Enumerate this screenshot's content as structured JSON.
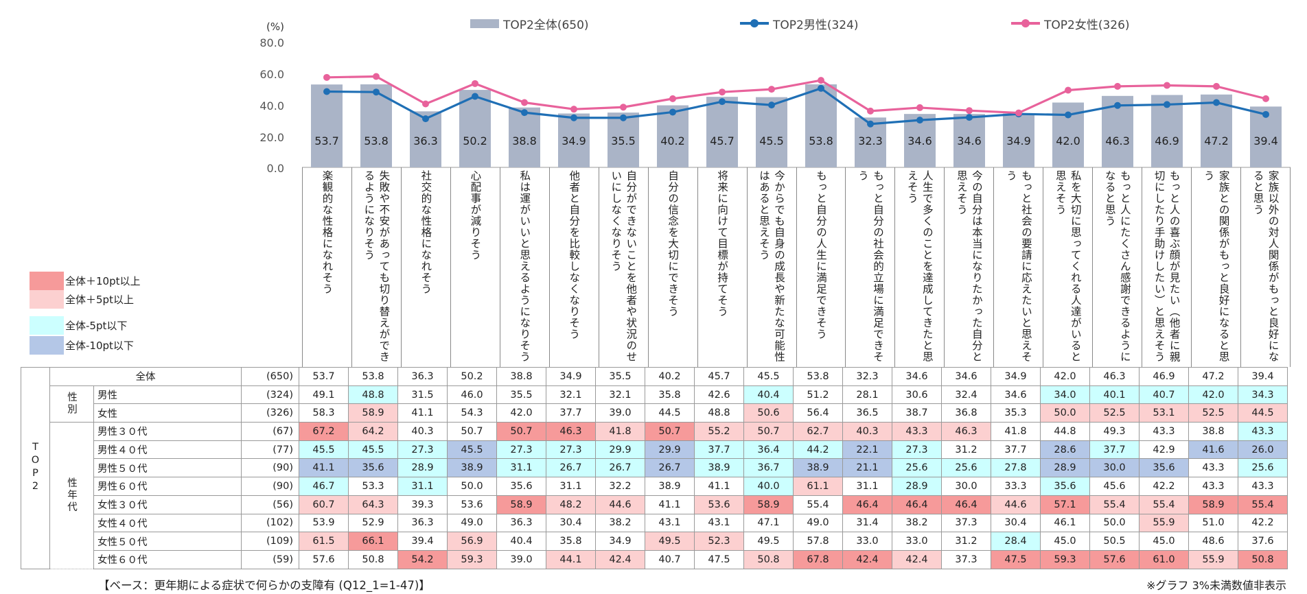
{
  "chart_data": {
    "type": "bar",
    "unit_label": "(%)",
    "ylim": [
      0,
      80
    ],
    "yticks": [
      "80.0",
      "60.0",
      "40.0",
      "20.0",
      "0.0"
    ],
    "legend_position": "top",
    "colors": {
      "bar": "#aab4c7",
      "male": "#1f6fb5",
      "female": "#e8629b"
    },
    "series": [
      {
        "name": "TOP2全体(650)",
        "kind": "bar",
        "values": [
          53.7,
          53.8,
          36.3,
          50.2,
          38.8,
          34.9,
          35.5,
          40.2,
          45.7,
          45.5,
          53.8,
          32.3,
          34.6,
          34.6,
          34.9,
          42.0,
          46.3,
          46.9,
          47.2,
          39.4
        ]
      },
      {
        "name": "TOP2男性(324)",
        "kind": "line",
        "values": [
          49.1,
          48.8,
          31.5,
          46.0,
          35.5,
          32.1,
          32.1,
          35.8,
          42.6,
          40.4,
          51.2,
          28.1,
          30.6,
          32.4,
          34.6,
          34.0,
          40.1,
          40.7,
          42.0,
          34.3
        ]
      },
      {
        "name": "TOP2女性(326)",
        "kind": "line",
        "values": [
          58.3,
          58.9,
          41.1,
          54.3,
          42.0,
          37.7,
          39.0,
          44.5,
          48.8,
          50.6,
          56.4,
          36.5,
          38.7,
          36.8,
          35.3,
          50.0,
          52.5,
          53.1,
          52.5,
          44.5
        ]
      }
    ],
    "categories": [
      "楽観的な性格になれそう",
      "失敗や不安があっても切り替えができるようになりそう",
      "社交的な性格になれそう",
      "心配事が減りそう",
      "私は運がいいと思えるようになりそう",
      "他者と自分を比較しなくなりそう",
      "自分ができないことを他者や状況のせいにしなくなりそう",
      "自分の信念を大切にできそう",
      "将来に向けて目標が持てそう",
      "今からでも自身の成長や新たな可能性はあると思えそう",
      "もっと自分の人生に満足できそう",
      "もっと自分の社会的立場に満足できそう",
      "人生で多くのことを達成してきたと思えそう",
      "今の自分は本当になりたかった自分と思えそう",
      "もっと社会の要請に応えたいと思えそう",
      "私を大切に思ってくれる人達がいると思えそう",
      "もっと人にたくさん感謝できるようになると思う",
      "もっと人の喜ぶ顔が見たい（他者に親切にしたり手助けしたい）と思えそう",
      "家族との関係がもっと良好になると思う",
      "家族以外の対人関係がもっと良好になると思う"
    ]
  },
  "color_key": [
    {
      "label": "全体＋10pt以上",
      "color": "#f69a9a"
    },
    {
      "label": "全体＋5pt以上",
      "color": "#fcd0d0"
    },
    {
      "label": "全体-5pt以下",
      "color": "#ccffff"
    },
    {
      "label": "全体-10pt以下",
      "color": "#b4c7e7"
    }
  ],
  "table": {
    "group_label": "TOP2",
    "gender_group": "性別",
    "age_group": "性年代",
    "rows": [
      {
        "label": "全体",
        "n": "(650)",
        "values": [
          "53.7",
          "53.8",
          "36.3",
          "50.2",
          "38.8",
          "34.9",
          "35.5",
          "40.2",
          "45.7",
          "45.5",
          "53.8",
          "32.3",
          "34.6",
          "34.6",
          "34.9",
          "42.0",
          "46.3",
          "46.9",
          "47.2",
          "39.4"
        ],
        "shade": "nnnnnnnnnnnnnnnnnnnn"
      },
      {
        "label": "男性",
        "n": "(324)",
        "values": [
          "49.1",
          "48.8",
          "31.5",
          "46.0",
          "35.5",
          "32.1",
          "32.1",
          "35.8",
          "42.6",
          "40.4",
          "51.2",
          "28.1",
          "30.6",
          "32.4",
          "34.6",
          "34.0",
          "40.1",
          "40.7",
          "42.0",
          "34.3"
        ],
        "shade": "ncnnnnnnncnnnnncccc c"
      },
      {
        "label": "女性",
        "n": "(326)",
        "values": [
          "58.3",
          "58.9",
          "41.1",
          "54.3",
          "42.0",
          "37.7",
          "39.0",
          "44.5",
          "48.8",
          "50.6",
          "56.4",
          "36.5",
          "38.7",
          "36.8",
          "35.3",
          "50.0",
          "52.5",
          "53.1",
          "52.5",
          "44.5"
        ],
        "shade": "nlnnnnnnnlnnnnnlllll"
      },
      {
        "label": "男性３０代",
        "n": "(67)",
        "values": [
          "67.2",
          "64.2",
          "40.3",
          "50.7",
          "50.7",
          "46.3",
          "41.8",
          "50.7",
          "55.2",
          "50.7",
          "62.7",
          "40.3",
          "43.3",
          "46.3",
          "41.8",
          "44.8",
          "49.3",
          "43.3",
          "38.8",
          "43.3"
        ],
        "shade": "DlnnDDlDllllllnnnnnc n"
      },
      {
        "label": "男性４０代",
        "n": "(77)",
        "values": [
          "45.5",
          "45.5",
          "27.3",
          "45.5",
          "27.3",
          "27.3",
          "29.9",
          "29.9",
          "37.7",
          "36.4",
          "44.2",
          "22.1",
          "27.3",
          "31.2",
          "37.7",
          "28.6",
          "37.7",
          "42.9",
          "41.6",
          "26.0"
        ],
        "shade": "cccbcccbcccbcnnbcnbb"
      },
      {
        "label": "男性５０代",
        "n": "(90)",
        "values": [
          "41.1",
          "35.6",
          "28.9",
          "38.9",
          "31.1",
          "26.7",
          "26.7",
          "26.7",
          "38.9",
          "36.7",
          "38.9",
          "21.1",
          "25.6",
          "25.6",
          "27.8",
          "28.9",
          "30.0",
          "35.6",
          "43.3",
          "25.6"
        ],
        "shade": "bbcbcccbccbbcccbbbnc"
      },
      {
        "label": "男性６０代",
        "n": "(90)",
        "values": [
          "46.7",
          "53.3",
          "31.1",
          "50.0",
          "35.6",
          "31.1",
          "32.2",
          "38.9",
          "41.1",
          "40.0",
          "61.1",
          "31.1",
          "28.9",
          "30.0",
          "33.3",
          "35.6",
          "45.6",
          "42.2",
          "43.3",
          "43.3"
        ],
        "shade": "cncnnnnnnclncnncnnnn"
      },
      {
        "label": "女性３０代",
        "n": "(56)",
        "values": [
          "60.7",
          "64.3",
          "39.3",
          "53.6",
          "58.9",
          "48.2",
          "44.6",
          "41.1",
          "53.6",
          "58.9",
          "55.4",
          "46.4",
          "46.4",
          "46.4",
          "44.6",
          "57.1",
          "55.4",
          "55.4",
          "58.9",
          "55.4"
        ],
        "shade": "llnnDllnlDnDDDlDllDD"
      },
      {
        "label": "女性４０代",
        "n": "(102)",
        "values": [
          "53.9",
          "52.9",
          "36.3",
          "49.0",
          "36.3",
          "30.4",
          "38.2",
          "43.1",
          "43.1",
          "47.1",
          "49.0",
          "31.4",
          "38.2",
          "37.3",
          "30.4",
          "46.1",
          "50.0",
          "55.9",
          "51.0",
          "42.2"
        ],
        "shade": "nnnnnnnnnnnnnnnnnlnn"
      },
      {
        "label": "女性５０代",
        "n": "(109)",
        "values": [
          "61.5",
          "66.1",
          "39.4",
          "56.9",
          "40.4",
          "35.8",
          "34.9",
          "49.5",
          "52.3",
          "49.5",
          "57.8",
          "33.0",
          "33.0",
          "31.2",
          "28.4",
          "45.0",
          "50.5",
          "45.0",
          "48.6",
          "37.6"
        ],
        "shade": "lDnlnnnllnnnnncnnnnn"
      },
      {
        "label": "女性６０代",
        "n": "(59)",
        "values": [
          "57.6",
          "50.8",
          "54.2",
          "59.3",
          "39.0",
          "44.1",
          "42.4",
          "40.7",
          "47.5",
          "50.8",
          "67.8",
          "42.4",
          "42.4",
          "37.3",
          "47.5",
          "59.3",
          "57.6",
          "61.0",
          "55.9",
          "50.8"
        ],
        "shade": "nnDlnllnnlDDlnDDDDlD"
      }
    ]
  },
  "footer": {
    "base_note": "【ベース：更年期による症状で何らかの支障有 (Q12_1=1-47)】",
    "graph_note": "※グラフ 3%未満数値非表示"
  }
}
